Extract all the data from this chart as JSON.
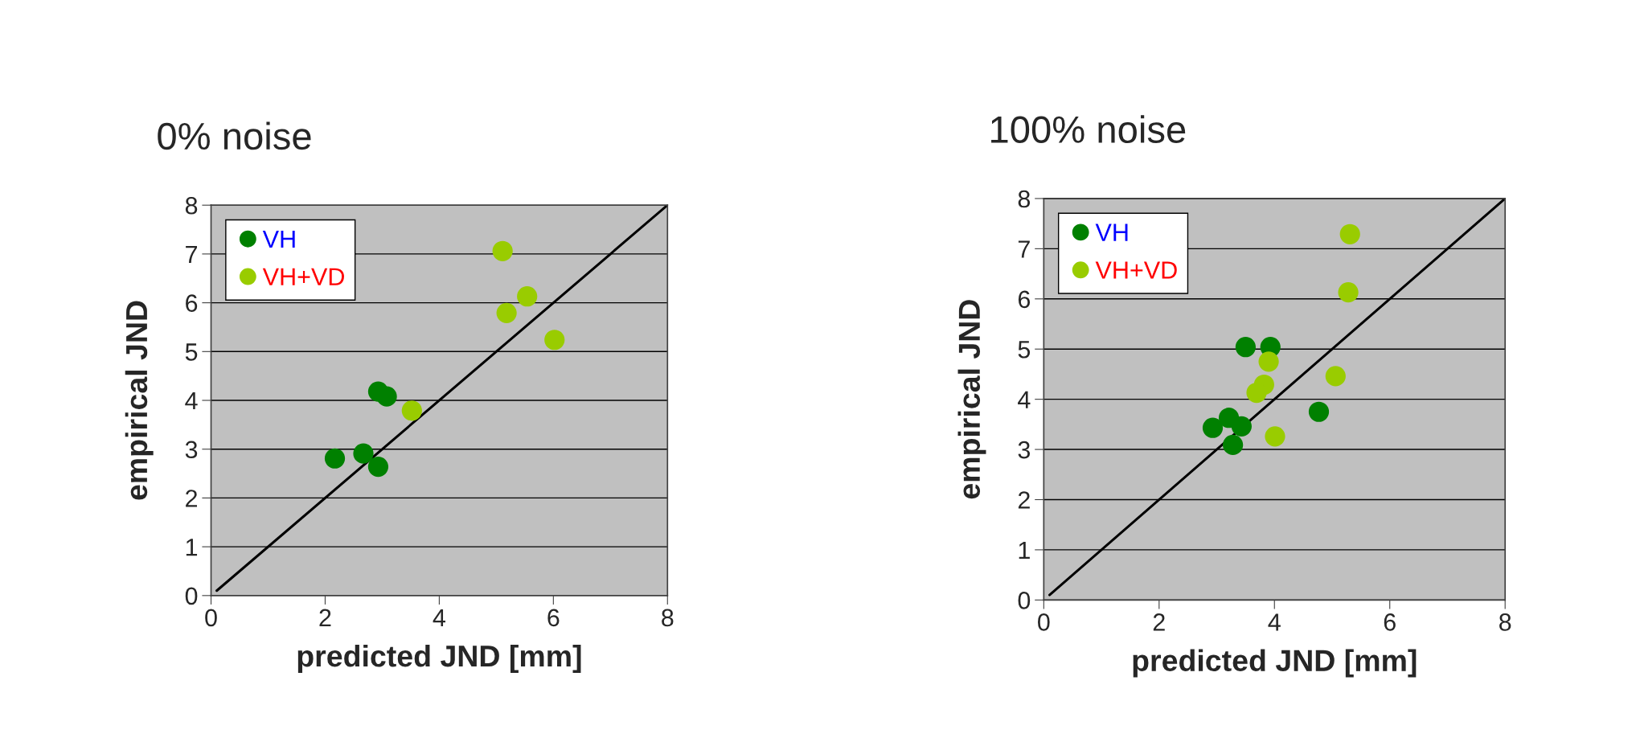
{
  "chart_data": [
    {
      "type": "scatter",
      "title": "0% noise",
      "xlabel": "predicted JND [mm]",
      "ylabel": "empirical JND",
      "xlim": [
        0,
        8
      ],
      "ylim": [
        0,
        8
      ],
      "xticks": [
        0,
        2,
        4,
        6,
        8
      ],
      "yticks": [
        0,
        1,
        2,
        3,
        4,
        5,
        6,
        7,
        8
      ],
      "grid": "y",
      "legend": "top left",
      "series": [
        {
          "name": "VH",
          "color": "#008000",
          "marker": "circle",
          "x": [
            2.17,
            2.67,
            2.93,
            2.93,
            3.08
          ],
          "values": [
            2.81,
            2.91,
            2.64,
            4.18,
            4.08
          ]
        },
        {
          "name": "VH+VD",
          "color": "#99cc00",
          "marker": "circle",
          "x": [
            5.11,
            5.54,
            5.18,
            6.02,
            3.52
          ],
          "values": [
            7.06,
            6.13,
            5.79,
            5.24,
            3.79
          ]
        },
        {
          "type": "line",
          "color": "#000000",
          "x": [
            0.1,
            8
          ],
          "values": [
            0.1,
            8
          ]
        }
      ]
    },
    {
      "type": "scatter",
      "title": "100% noise",
      "xlabel": "predicted JND [mm]",
      "ylabel": "empirical JND",
      "xlim": [
        0,
        8
      ],
      "ylim": [
        0,
        8
      ],
      "xticks": [
        0,
        2,
        4,
        6,
        8
      ],
      "yticks": [
        0,
        1,
        2,
        3,
        4,
        5,
        6,
        7,
        8
      ],
      "grid": "y",
      "legend": "top left",
      "series": [
        {
          "name": "VH",
          "color": "#008000",
          "marker": "circle",
          "x": [
            3.5,
            3.93,
            3.21,
            3.43,
            2.93,
            3.28,
            4.77
          ],
          "values": [
            5.04,
            5.04,
            3.63,
            3.46,
            3.43,
            3.09,
            3.75
          ]
        },
        {
          "name": "VH+VD",
          "color": "#99cc00",
          "marker": "circle",
          "x": [
            5.31,
            5.28,
            3.9,
            3.82,
            3.69,
            5.06,
            4.01
          ],
          "values": [
            7.29,
            6.13,
            4.75,
            4.29,
            4.13,
            4.46,
            3.26
          ]
        },
        {
          "type": "line",
          "color": "#000000",
          "x": [
            0.1,
            8
          ],
          "values": [
            0.1,
            8
          ]
        }
      ]
    }
  ]
}
